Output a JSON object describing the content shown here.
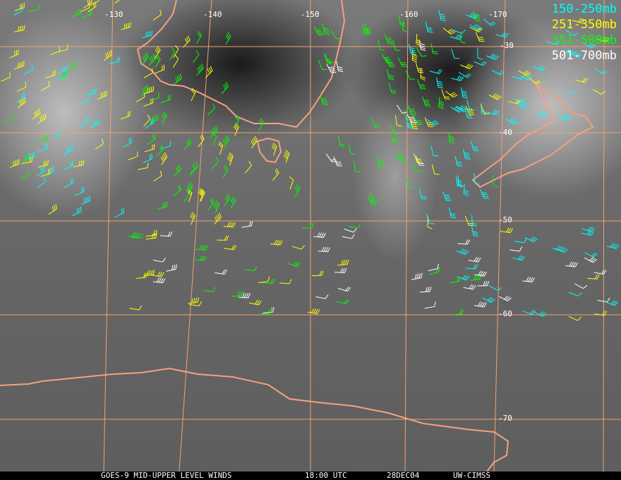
{
  "image": {
    "type": "satellite water vapor image with wind barbs",
    "caption": {
      "satellite": "GOES-9 MID-UPPER LEVEL WINDS",
      "time": "18:00 UTC",
      "date": "28DEC04",
      "source": "UW-CIMSS"
    },
    "legend": [
      {
        "label": "150-250mb",
        "color": "#00ffff"
      },
      {
        "label": "251-350mb",
        "color": "#ffff00"
      },
      {
        "label": "351-500mb",
        "color": "#00ff00"
      },
      {
        "label": "501-700mb",
        "color": "#ffffff"
      }
    ],
    "longitude_labels": [
      "-130",
      "-140",
      "-150",
      "-160",
      "-170"
    ],
    "latitude_labels": [
      "-30",
      "-40",
      "-50",
      "-60",
      "-70"
    ],
    "grid_color": "#f4a070",
    "coast_color": "#f4a080"
  }
}
